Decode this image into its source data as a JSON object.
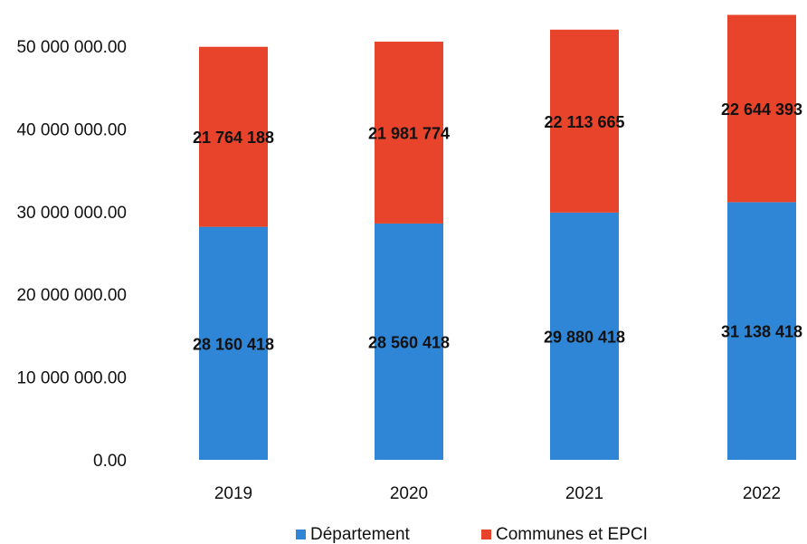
{
  "chart_data": {
    "type": "bar",
    "stacked": true,
    "categories": [
      "2019",
      "2020",
      "2021",
      "2022"
    ],
    "series": [
      {
        "name": "Département",
        "color": "#2f86d6",
        "values": [
          28160418,
          28560418,
          29880418,
          31138418
        ],
        "labels": [
          "28 160 418",
          "28 560 418",
          "29 880 418",
          "31 138 418"
        ]
      },
      {
        "name": "Communes et EPCI",
        "color": "#e8442c",
        "values": [
          21764188,
          21981774,
          22113665,
          22644393
        ],
        "labels": [
          "21 764 188",
          "21 981 774",
          "22 113 665",
          "22 644 393"
        ]
      }
    ],
    "ylim": [
      0,
      55000000
    ],
    "y_ticks": [
      0,
      10000000,
      20000000,
      30000000,
      40000000,
      50000000
    ],
    "y_tick_labels": [
      "0.00",
      "10 000 000.00",
      "20 000 000.00",
      "30 000 000.00",
      "40 000 000.00",
      "50 000 000.00"
    ],
    "grid": false,
    "legend_position": "bottom"
  }
}
